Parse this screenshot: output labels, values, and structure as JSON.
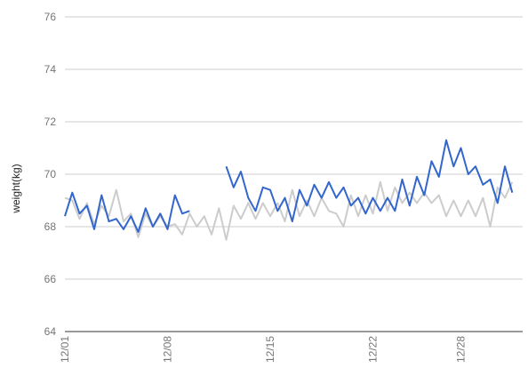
{
  "chart_data": {
    "type": "line",
    "title": "",
    "xlabel": "",
    "ylabel": "weight(kg)",
    "ylim": [
      64,
      76
    ],
    "y_ticks": [
      64,
      66,
      68,
      70,
      72,
      74,
      76
    ],
    "x_start": "2019-12-01",
    "x_tick_labels": [
      {
        "date": "2019-12-01",
        "label": "12/01"
      },
      {
        "date": "2019-12-08",
        "label": "12/08"
      },
      {
        "date": "2019-12-15",
        "label": "12/15"
      },
      {
        "date": "2019-12-22",
        "label": "12/22"
      },
      {
        "date": "2019-12-28",
        "label": "12/28"
      }
    ],
    "grid": "horizontal",
    "legend": "none",
    "x_dates": [
      "2019-12-01",
      "2019-12-01",
      "2019-12-02",
      "2019-12-02",
      "2019-12-03",
      "2019-12-03",
      "2019-12-04",
      "2019-12-04",
      "2019-12-05",
      "2019-12-05",
      "2019-12-06",
      "2019-12-06",
      "2019-12-07",
      "2019-12-07",
      "2019-12-08",
      "2019-12-08",
      "2019-12-09",
      "2019-12-09",
      "2019-12-10",
      "2019-12-10",
      "2019-12-11",
      "2019-12-11",
      "2019-12-12",
      "2019-12-12",
      "2019-12-13",
      "2019-12-13",
      "2019-12-14",
      "2019-12-14",
      "2019-12-15",
      "2019-12-15",
      "2019-12-16",
      "2019-12-16",
      "2019-12-17",
      "2019-12-17",
      "2019-12-18",
      "2019-12-18",
      "2019-12-19",
      "2019-12-19",
      "2019-12-20",
      "2019-12-20",
      "2019-12-21",
      "2019-12-21",
      "2019-12-22",
      "2019-12-22",
      "2019-12-23",
      "2019-12-23",
      "2019-12-24",
      "2019-12-24",
      "2019-12-25",
      "2019-12-25",
      "2019-12-26",
      "2019-12-26",
      "2019-12-27",
      "2019-12-27",
      "2019-12-28",
      "2019-12-28",
      "2019-12-29",
      "2019-12-29",
      "2019-12-30",
      "2019-12-30",
      "2019-12-31",
      "2019-12-31"
    ],
    "series": [
      {
        "color": "#3366cc",
        "width": 2,
        "values": [
          68.4,
          69.3,
          68.5,
          68.8,
          67.9,
          69.2,
          68.2,
          68.3,
          67.9,
          68.4,
          67.8,
          68.7,
          68.0,
          68.5,
          67.9,
          69.2,
          68.5,
          68.6,
          null,
          null,
          null,
          null,
          70.3,
          69.5,
          70.1,
          69.1,
          68.6,
          69.5,
          69.4,
          68.6,
          69.1,
          68.2,
          69.4,
          68.8,
          69.6,
          69.1,
          69.7,
          69.1,
          69.5,
          68.8,
          69.1,
          68.5,
          69.1,
          68.6,
          69.1,
          68.6,
          69.8,
          68.8,
          69.9,
          69.2,
          70.5,
          69.9,
          71.3,
          70.3,
          71.0,
          70.0,
          70.3,
          69.6,
          69.8,
          68.9,
          70.3,
          69.3
        ]
      },
      {
        "color": "#cccccc",
        "width": 2,
        "values": [
          69.1,
          69.0,
          68.3,
          68.9,
          68.1,
          68.8,
          68.4,
          69.4,
          68.2,
          68.5,
          67.6,
          68.5,
          68.0,
          68.4,
          68.0,
          68.1,
          67.7,
          68.5,
          68.0,
          68.4,
          67.7,
          68.7,
          67.5,
          68.8,
          68.3,
          68.9,
          68.3,
          68.9,
          68.4,
          68.9,
          68.2,
          69.4,
          68.4,
          69.0,
          68.4,
          69.1,
          68.6,
          68.5,
          68.0,
          69.2,
          68.4,
          69.2,
          68.5,
          69.7,
          68.6,
          69.5,
          68.9,
          69.3,
          68.9,
          69.3,
          68.9,
          69.2,
          68.4,
          69.0,
          68.4,
          69.0,
          68.4,
          69.1,
          68.0,
          69.5,
          69.1,
          69.7
        ]
      }
    ]
  }
}
